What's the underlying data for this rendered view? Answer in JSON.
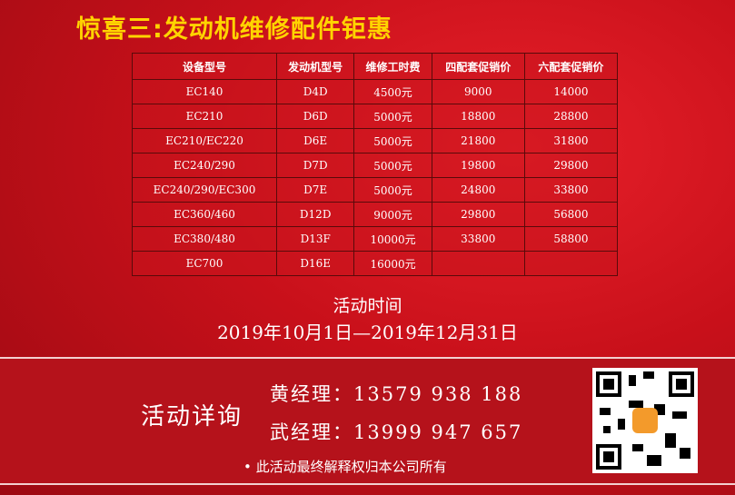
{
  "header": {
    "title": "惊喜三:发动机维修配件钜惠"
  },
  "table": {
    "columns": [
      "设备型号",
      "发动机型号",
      "维修工时费",
      "四配套促销价",
      "六配套促销价"
    ],
    "rows": [
      [
        "EC140",
        "D4D",
        "4500元",
        "9000",
        "14000"
      ],
      [
        "EC210",
        "D6D",
        "5000元",
        "18800",
        "28800"
      ],
      [
        "EC210/EC220",
        "D6E",
        "5000元",
        "21800",
        "31800"
      ],
      [
        "EC240/290",
        "D7D",
        "5000元",
        "19800",
        "29800"
      ],
      [
        "EC240/290/EC300",
        "D7E",
        "5000元",
        "24800",
        "33800"
      ],
      [
        "EC360/460",
        "D12D",
        "9000元",
        "29800",
        "56800"
      ],
      [
        "EC380/480",
        "D13F",
        "10000元",
        "33800",
        "58800"
      ],
      [
        "EC700",
        "D16E",
        "16000元"
      ]
    ]
  },
  "period": {
    "label": "活动时间",
    "dates": "2019年10月1日—2019年12月31日"
  },
  "contact": {
    "label": "活动详询",
    "people": [
      {
        "name": "黄经理：",
        "phone": "13579 938 188"
      },
      {
        "name": "武经理：",
        "phone": "13999 947 657"
      }
    ]
  },
  "footer": {
    "note": "• 此活动最终解释权归本公司所有"
  }
}
